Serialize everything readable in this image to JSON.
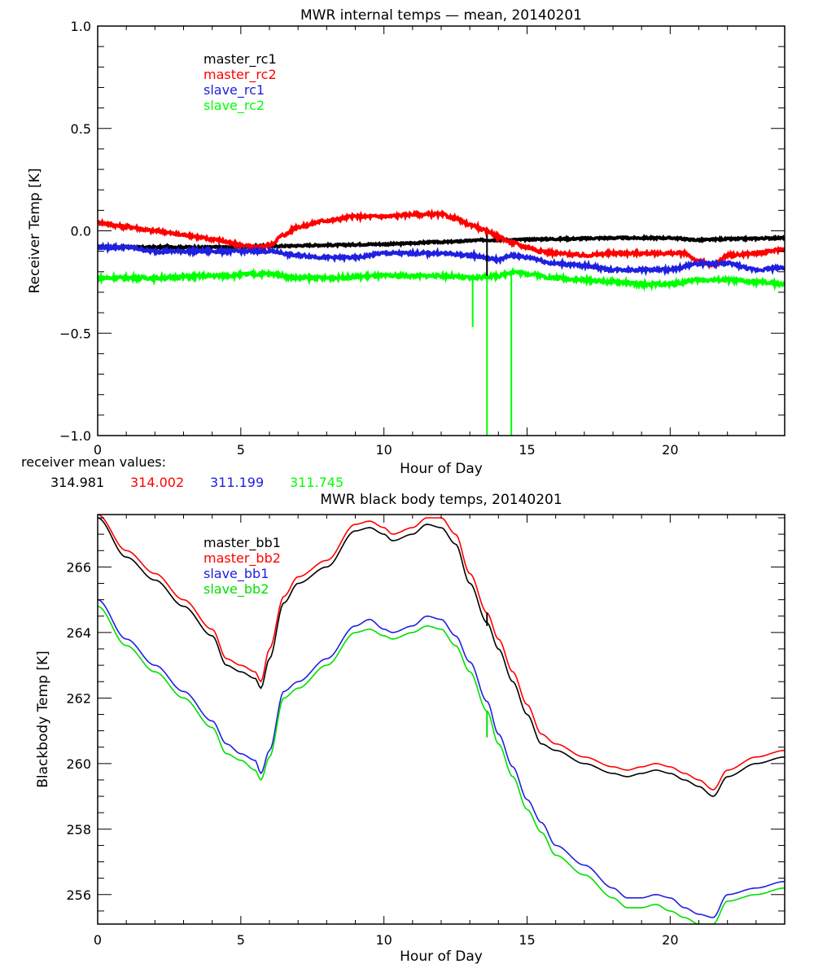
{
  "chart_data": [
    {
      "type": "line",
      "title": "MWR internal temps — mean, 20140201",
      "xlabel": "Hour of Day",
      "ylabel": "Receiver Temp [K]",
      "xlim": [
        0,
        24
      ],
      "ylim": [
        -1.0,
        1.0
      ],
      "xticks": [
        "0",
        "5",
        "10",
        "15",
        "20"
      ],
      "yticks": [
        "1.0",
        "0.5",
        "0.0",
        "-0.5",
        "-1.0"
      ],
      "grid": false,
      "legend_placement": "top-left",
      "series": [
        {
          "name": "master_rc1",
          "color": "#000000",
          "x": [
            0,
            2,
            4,
            6,
            8,
            10,
            12,
            13.6,
            14,
            16,
            18,
            20,
            21,
            22,
            24
          ],
          "y": [
            -0.08,
            -0.08,
            -0.08,
            -0.075,
            -0.07,
            -0.065,
            -0.055,
            -0.045,
            -0.045,
            -0.04,
            -0.035,
            -0.035,
            -0.045,
            -0.04,
            -0.035
          ]
        },
        {
          "name": "master_rc2",
          "color": "#ff0000",
          "x": [
            0,
            1,
            2,
            3,
            4,
            5,
            5.5,
            6,
            6.5,
            7,
            8,
            9,
            10,
            11,
            12,
            12.5,
            13,
            13.6,
            14,
            14.5,
            15,
            15.5,
            16,
            17,
            18,
            19,
            20,
            20.5,
            21,
            21.5,
            22,
            23,
            24
          ],
          "y": [
            0.04,
            0.02,
            0.0,
            -0.02,
            -0.04,
            -0.07,
            -0.08,
            -0.07,
            -0.02,
            0.02,
            0.05,
            0.07,
            0.07,
            0.08,
            0.08,
            0.06,
            0.03,
            0.0,
            -0.03,
            -0.06,
            -0.08,
            -0.1,
            -0.11,
            -0.12,
            -0.11,
            -0.11,
            -0.11,
            -0.11,
            -0.15,
            -0.17,
            -0.12,
            -0.11,
            -0.09
          ]
        },
        {
          "name": "slave_rc1",
          "color": "#2020e0",
          "x": [
            0,
            1,
            2,
            4,
            5,
            6,
            7,
            8,
            9,
            10,
            11,
            12,
            13,
            14,
            14.5,
            15,
            16,
            17,
            18,
            19,
            20,
            21,
            22,
            23,
            24
          ],
          "y": [
            -0.08,
            -0.08,
            -0.1,
            -0.1,
            -0.1,
            -0.1,
            -0.12,
            -0.13,
            -0.13,
            -0.11,
            -0.11,
            -0.11,
            -0.12,
            -0.14,
            -0.12,
            -0.13,
            -0.16,
            -0.17,
            -0.19,
            -0.19,
            -0.19,
            -0.16,
            -0.16,
            -0.19,
            -0.18
          ]
        },
        {
          "name": "slave_rc2",
          "color": "#00ff00",
          "x": [
            0,
            2,
            4,
            6,
            7,
            8,
            10,
            12,
            13,
            14,
            14.5,
            15,
            16,
            17,
            18,
            19,
            20,
            21,
            22,
            23,
            24
          ],
          "y": [
            -0.23,
            -0.23,
            -0.22,
            -0.21,
            -0.23,
            -0.23,
            -0.22,
            -0.22,
            -0.23,
            -0.22,
            -0.2,
            -0.21,
            -0.23,
            -0.24,
            -0.25,
            -0.26,
            -0.26,
            -0.24,
            -0.24,
            -0.25,
            -0.26
          ]
        }
      ],
      "spikes": [
        {
          "series": "slave_rc2",
          "x": 13.1,
          "y_from": -0.23,
          "y_to": -0.47
        },
        {
          "series": "slave_rc2",
          "x": 13.6,
          "y_from": -0.22,
          "y_to": -1.0
        },
        {
          "series": "slave_rc2",
          "x": 14.45,
          "y_from": -0.21,
          "y_to": -1.0
        },
        {
          "series": "master_rc1",
          "x": 13.6,
          "y_from": 0.0,
          "y_to": -0.22
        },
        {
          "series": "master_rc2",
          "x": 13.6,
          "y_from": 0.0,
          "y_to": -0.02
        }
      ]
    },
    {
      "type": "line",
      "title": "MWR black body temps, 20140201",
      "xlabel": "Hour of Day",
      "ylabel": "Blackbody Temp [K]",
      "xlim": [
        0,
        24
      ],
      "ylim": [
        255.1,
        267.6
      ],
      "xticks": [
        "0",
        "5",
        "10",
        "15",
        "20"
      ],
      "yticks": [
        "256",
        "258",
        "260",
        "262",
        "264",
        "266"
      ],
      "grid": false,
      "legend_placement": "top-left",
      "series": [
        {
          "name": "master_bb1",
          "color": "#000000",
          "x": [
            0,
            1,
            2,
            3,
            4,
            4.5,
            5,
            5.5,
            5.7,
            6,
            6.5,
            7,
            8,
            9,
            9.5,
            10,
            10.3,
            11,
            11.5,
            12,
            12.5,
            13,
            13.6,
            14,
            14.5,
            15,
            15.5,
            16,
            17,
            18,
            18.5,
            19,
            19.5,
            20,
            20.5,
            21,
            21.5,
            22,
            23,
            24
          ],
          "y": [
            267.5,
            266.3,
            265.6,
            264.8,
            263.9,
            263.0,
            262.8,
            262.6,
            262.3,
            263.2,
            264.9,
            265.5,
            266.0,
            267.1,
            267.2,
            267.0,
            266.8,
            267.0,
            267.3,
            267.2,
            266.7,
            265.5,
            264.3,
            263.5,
            262.5,
            261.5,
            260.6,
            260.4,
            260.0,
            259.7,
            259.6,
            259.7,
            259.8,
            259.7,
            259.5,
            259.3,
            259.0,
            259.6,
            260.0,
            260.2
          ]
        },
        {
          "name": "master_bb2",
          "color": "#ff0000",
          "x": [
            0,
            1,
            2,
            3,
            4,
            4.5,
            5,
            5.5,
            5.7,
            6,
            6.5,
            7,
            8,
            9,
            9.5,
            10,
            10.3,
            11,
            11.5,
            12,
            12.5,
            13,
            13.6,
            14,
            14.5,
            15,
            15.5,
            16,
            17,
            18,
            18.5,
            19,
            19.5,
            20,
            20.5,
            21,
            21.5,
            22,
            23,
            24
          ],
          "y": [
            267.6,
            266.5,
            265.8,
            265.0,
            264.1,
            263.2,
            263.0,
            262.8,
            262.5,
            263.5,
            265.1,
            265.7,
            266.2,
            267.3,
            267.4,
            267.2,
            267.0,
            267.2,
            267.5,
            267.5,
            267.0,
            265.8,
            264.6,
            263.8,
            262.8,
            261.8,
            260.9,
            260.6,
            260.2,
            259.9,
            259.8,
            259.9,
            260.0,
            259.9,
            259.7,
            259.5,
            259.2,
            259.8,
            260.2,
            260.4
          ]
        },
        {
          "name": "slave_bb1",
          "color": "#2020e0",
          "x": [
            0,
            1,
            2,
            3,
            4,
            4.5,
            5,
            5.5,
            5.7,
            6,
            6.5,
            7,
            8,
            9,
            9.5,
            10,
            10.3,
            11,
            11.5,
            12,
            12.5,
            13,
            13.6,
            14,
            14.5,
            15,
            15.5,
            16,
            17,
            18,
            18.5,
            19,
            19.5,
            20,
            20.5,
            21,
            21.5,
            22,
            23,
            24
          ],
          "y": [
            265.0,
            263.8,
            263.0,
            262.2,
            261.3,
            260.6,
            260.3,
            260.1,
            259.7,
            260.4,
            262.2,
            262.5,
            263.2,
            264.2,
            264.4,
            264.1,
            264.0,
            264.2,
            264.5,
            264.4,
            263.9,
            263.1,
            261.9,
            260.9,
            259.9,
            258.9,
            258.2,
            257.5,
            256.9,
            256.2,
            255.9,
            255.9,
            256.0,
            255.9,
            255.6,
            255.4,
            255.3,
            256.0,
            256.2,
            256.4
          ]
        },
        {
          "name": "slave_bb2",
          "color": "#00e000",
          "x": [
            0,
            1,
            2,
            3,
            4,
            4.5,
            5,
            5.5,
            5.7,
            6,
            6.5,
            7,
            8,
            9,
            9.5,
            10,
            10.3,
            11,
            11.5,
            12,
            12.5,
            13,
            13.6,
            14,
            14.5,
            15,
            15.5,
            16,
            17,
            18,
            18.5,
            19,
            19.5,
            20,
            20.5,
            21,
            21.5,
            22,
            23,
            24
          ],
          "y": [
            264.8,
            263.6,
            262.8,
            262.0,
            261.1,
            260.3,
            260.1,
            259.8,
            259.5,
            260.2,
            262.0,
            262.3,
            263.0,
            264.0,
            264.1,
            263.9,
            263.8,
            264.0,
            264.2,
            264.1,
            263.6,
            262.8,
            261.6,
            260.6,
            259.6,
            258.6,
            257.9,
            257.2,
            256.6,
            255.9,
            255.6,
            255.6,
            255.7,
            255.5,
            255.3,
            255.1,
            255.1,
            255.8,
            256.0,
            256.2
          ]
        }
      ],
      "spikes": [
        {
          "series": "slave_bb2",
          "x": 13.6,
          "y_from": 261.6,
          "y_to": 260.8
        },
        {
          "series": "master_bb1",
          "x": 13.6,
          "y_from": 264.6,
          "y_to": 264.2
        }
      ]
    }
  ],
  "receiver_mean": {
    "label": "receiver mean values:",
    "values": [
      {
        "text": "314.981",
        "color": "#000000"
      },
      {
        "text": "314.002",
        "color": "#ff0000"
      },
      {
        "text": "311.199",
        "color": "#2020e0"
      },
      {
        "text": "311.745",
        "color": "#00ff00"
      }
    ]
  }
}
